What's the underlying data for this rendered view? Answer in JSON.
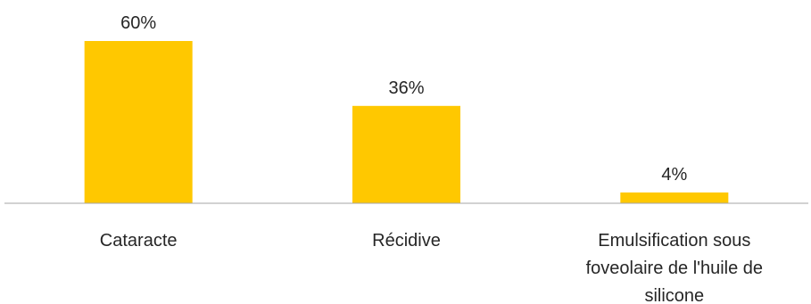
{
  "chart_data": {
    "type": "bar",
    "categories": [
      [
        "Cataracte"
      ],
      [
        "Récidive"
      ],
      [
        "Emulsification sous",
        "foveolaire de l'huile de",
        "silicone"
      ]
    ],
    "values": [
      60,
      36,
      4
    ],
    "data_labels": [
      "60%",
      "36%",
      "4%"
    ],
    "title": "",
    "xlabel": "",
    "ylabel": "",
    "ylim": [
      0,
      60
    ],
    "grid": false,
    "legend": "none",
    "bar_color": "#FFC800",
    "axis_color": "#A6A6A6",
    "text_color": "#262626"
  }
}
